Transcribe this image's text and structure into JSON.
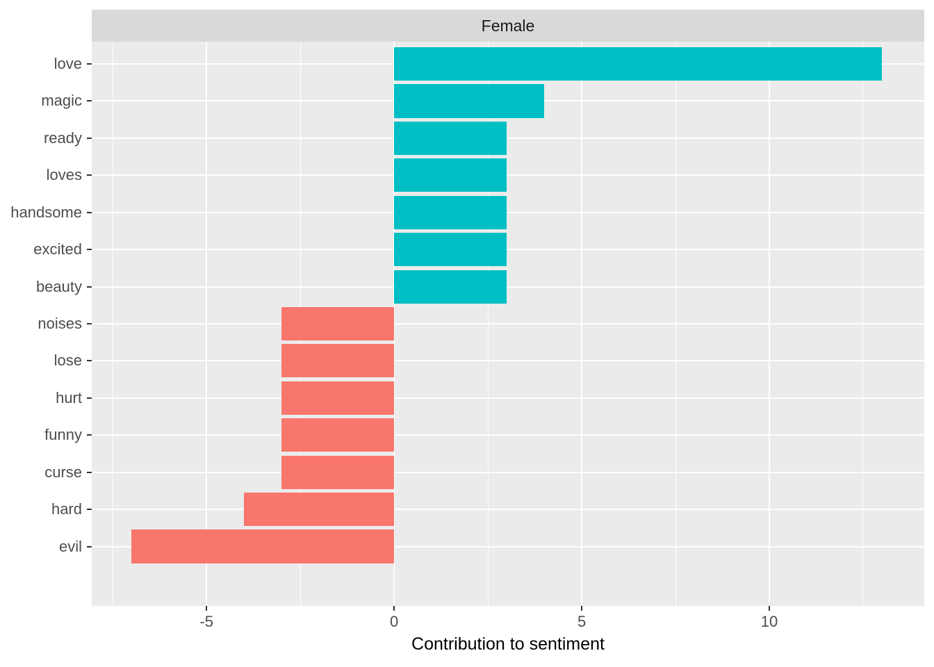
{
  "strip": {
    "label": "Female"
  },
  "colors": {
    "positive": "#00BFC4",
    "negative": "#F8766D",
    "panel_bg": "#EBEBEB",
    "strip_bg": "#D9D9D9",
    "grid": "#FFFFFF",
    "axis_text": "#4D4D4D",
    "tick_mark": "#333333",
    "strip_text": "#1A1A1A",
    "title_text": "#000000"
  },
  "chart_data": {
    "type": "bar",
    "orientation": "horizontal",
    "facet_label": "Female",
    "title": "",
    "xlabel": "Contribution to sentiment",
    "ylabel": "",
    "categories": [
      "love",
      "magic",
      "ready",
      "loves",
      "handsome",
      "excited",
      "beauty",
      "noises",
      "lose",
      "hurt",
      "funny",
      "curse",
      "hard",
      "evil"
    ],
    "values": [
      13,
      4,
      3,
      3,
      3,
      3,
      3,
      -3,
      -3,
      -3,
      -3,
      -3,
      -4,
      -7
    ],
    "xlim": [
      -8.06,
      14.13
    ],
    "x_major_ticks": [
      -5,
      0,
      5,
      10
    ],
    "x_tick_labels": [
      "-5",
      "0",
      "5",
      "10"
    ],
    "x_minor_gridlines": [
      -7.5,
      -2.5,
      2.5,
      7.5,
      12.5
    ],
    "grid": true,
    "legend": "none",
    "bar_width_fraction": 0.9
  }
}
